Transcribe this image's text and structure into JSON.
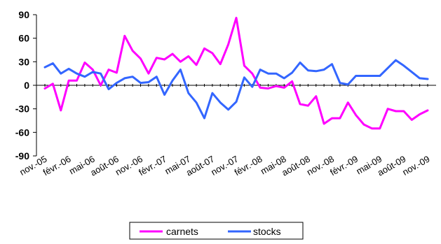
{
  "chart_data": {
    "type": "line",
    "title": "",
    "xlabel": "",
    "ylabel": "",
    "ylim": [
      -90,
      90
    ],
    "yticks": [
      -90,
      -60,
      -30,
      0,
      30,
      60,
      90
    ],
    "grid": false,
    "legend_position": "bottom",
    "x": [
      "nov.-05",
      "déc.-05",
      "janv.-06",
      "févr.-06",
      "mars-06",
      "avr.-06",
      "mai-06",
      "juin-06",
      "juil.-06",
      "août-06",
      "sept.-06",
      "oct.-06",
      "nov.-06",
      "déc.-06",
      "janv.-07",
      "févr.-07",
      "mars-07",
      "avr.-07",
      "mai-07",
      "juin-07",
      "juil.-07",
      "août-07",
      "sept.-07",
      "oct.-07",
      "nov.-07",
      "déc.-07",
      "janv.-08",
      "févr.-08",
      "mars-08",
      "avr.-08",
      "mai-08",
      "juin-08",
      "juil.-08",
      "août-08",
      "sept.-08",
      "oct.-08",
      "nov.-08",
      "déc.-08",
      "janv.-09",
      "févr.-09",
      "mars-09",
      "avr.-09",
      "mai-09",
      "juin-09",
      "juil.-09",
      "août-09",
      "sept.-09",
      "oct.-09",
      "nov.-09"
    ],
    "x_tick_labels": [
      "nov.-05",
      "févr.-06",
      "mai-06",
      "août-06",
      "nov.-06",
      "févr.-07",
      "mai-07",
      "août-07",
      "nov.-07",
      "févr.-08",
      "mai-08",
      "août-08",
      "nov.-08",
      "févr.-09",
      "mai-09",
      "août-09",
      "nov.-09"
    ],
    "series": [
      {
        "name": "carnets",
        "color": "#ff00ff",
        "values": [
          -4,
          2,
          -32,
          6,
          6,
          29,
          20,
          0,
          20,
          16,
          63,
          44,
          34,
          15,
          35,
          33,
          40,
          30,
          37,
          26,
          47,
          41,
          27,
          52,
          86,
          25,
          15,
          -3,
          -4,
          -1,
          -3,
          5,
          -24,
          -26,
          -14,
          -49,
          -42,
          -42,
          -22,
          -38,
          -50,
          -55,
          -55,
          -30,
          -33,
          -33,
          -44,
          -37,
          -32
        ]
      },
      {
        "name": "stocks",
        "color": "#3366ff",
        "values": [
          23,
          28,
          15,
          21,
          15,
          11,
          17,
          15,
          -5,
          3,
          9,
          11,
          3,
          4,
          11,
          -12,
          6,
          20,
          -10,
          -22,
          -42,
          -10,
          -22,
          -31,
          -21,
          10,
          -2,
          20,
          15,
          15,
          9,
          16,
          29,
          19,
          18,
          20,
          27,
          3,
          1,
          12,
          12,
          12,
          12,
          22,
          32,
          25,
          17,
          9,
          8
        ]
      }
    ]
  }
}
